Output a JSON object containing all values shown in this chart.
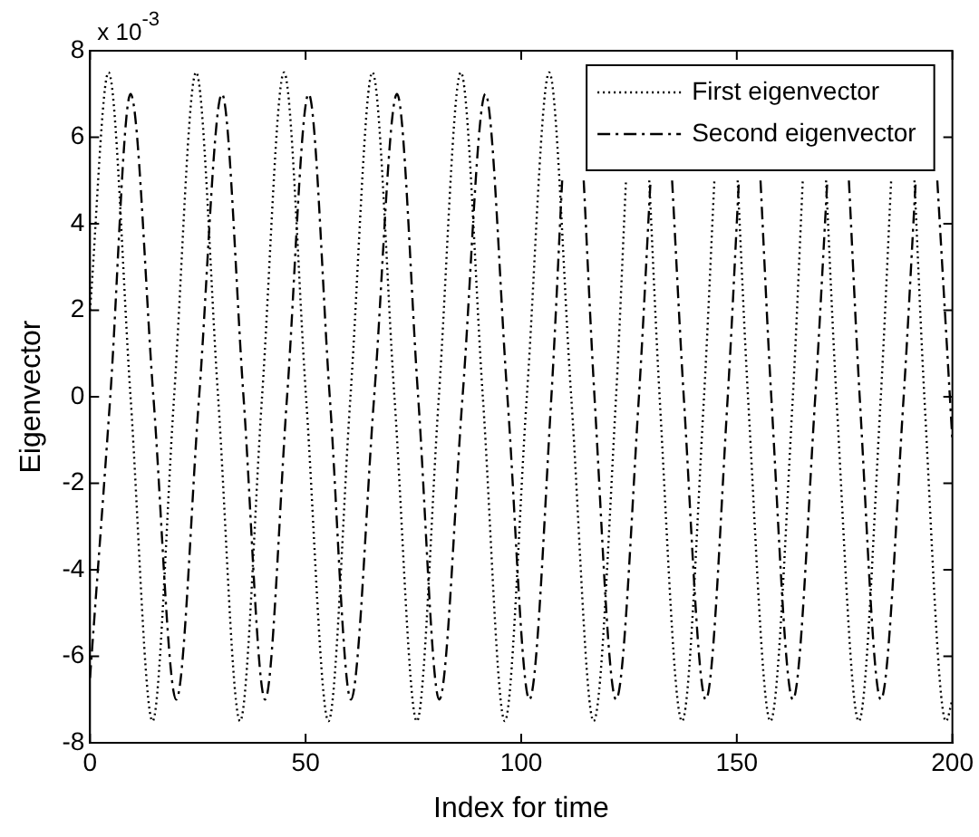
{
  "chart_data": {
    "type": "line",
    "xlabel": "Index for time",
    "ylabel": "Eigenvector",
    "annotations": [
      "x 10$^{-3}$"
    ],
    "xlim": [
      0,
      200
    ],
    "xticks": [
      0,
      50,
      100,
      150,
      200
    ],
    "ylim": [
      -8,
      8
    ],
    "yticks": [
      -8,
      -6,
      -4,
      -2,
      0,
      2,
      4,
      6,
      8
    ],
    "grid": false,
    "legend": "top right",
    "marker": "none",
    "series": [
      {
        "name": "First eigenvector",
        "color": "#000000",
        "line_style": "dotted",
        "x": [
          0,
          4.3,
          9.4,
          14.5,
          19.5,
          24.6,
          29.7,
          34.8,
          39.9,
          45,
          50.1,
          55.3,
          60.4,
          65.5,
          70.6,
          75.8,
          80.9,
          86,
          91.1,
          96.2,
          101.3,
          106.5,
          111.6,
          116.8,
          122,
          124.3,
          127,
          129.7,
          132.1,
          137.3,
          142.4,
          144.8,
          147.5,
          150.2,
          152.6,
          157.8,
          163,
          165.3,
          168,
          170.7,
          173.1,
          178.3,
          183.4,
          185.8,
          188.5,
          191.2,
          193.5,
          198.5,
          200
        ],
        "values": [
          2,
          7.5,
          0,
          -7.5,
          0,
          7.5,
          0,
          -7.5,
          0,
          7.5,
          0,
          -7.5,
          0,
          7.5,
          0,
          -7.5,
          0,
          7.5,
          0,
          -7.5,
          0,
          7.5,
          0,
          -7.5,
          0,
          5,
          null,
          5,
          0,
          -7.5,
          0,
          5,
          null,
          5,
          0,
          -7.5,
          0,
          5,
          null,
          5,
          0,
          -7.5,
          0,
          5,
          null,
          5,
          0,
          -7.5,
          -7
        ]
      },
      {
        "name": "Second eigenvector",
        "color": "#000000",
        "line_style": "dashdot",
        "x": [
          0,
          4.7,
          9.4,
          14.7,
          20,
          25.3,
          30.6,
          35.6,
          40.6,
          45.7,
          50.7,
          55.6,
          60.5,
          65.9,
          71.2,
          76.1,
          81,
          86.4,
          91.7,
          96.8,
          101.9,
          107,
          109.5,
          112,
          114.5,
          117,
          122,
          127.3,
          130,
          132.5,
          135,
          137.7,
          142.8,
          147.9,
          150.5,
          153,
          155.5,
          158,
          163,
          168.2,
          171,
          173.5,
          176,
          178.5,
          183.4,
          188.7,
          191.5,
          194,
          196.5,
          200
        ],
        "values": [
          -6.5,
          0,
          7,
          0,
          -7,
          0,
          7,
          0,
          -7,
          0,
          7,
          0,
          -7,
          0,
          7,
          0,
          -7,
          0,
          7,
          0,
          -7,
          0,
          5,
          null,
          5,
          0,
          -7,
          0,
          5,
          null,
          5,
          0,
          -7,
          0,
          5,
          null,
          5,
          0,
          -7,
          0,
          5,
          null,
          5,
          0,
          -7,
          0,
          5,
          null,
          5,
          -1
        ]
      }
    ]
  }
}
